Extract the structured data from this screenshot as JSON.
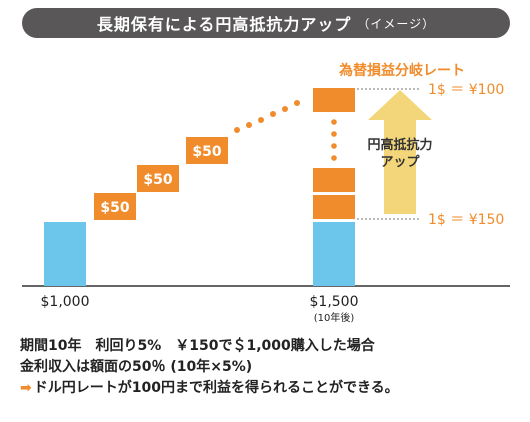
{
  "title": "長期保有による円高抵抗力アップ",
  "subtitle": "（イメージ）",
  "bar_labels": [
    "$50",
    "$50",
    "$50"
  ],
  "axis": {
    "left_label": "$1,000",
    "right_label": "$1,500",
    "right_sublabel": "(10年後)"
  },
  "annotations": {
    "breakeven_label": "為替損益分岐レート",
    "rate_top": "1$ ＝ ¥100",
    "rate_bottom": "1$ ＝ ¥150",
    "arrow_label_line1": "円高抵抗力",
    "arrow_label_line2": "アップ"
  },
  "notes": {
    "line1": "期間10年　利回り5%　￥150で＄1,000購入した場合",
    "line2": "金利収入は額面の50％ (10年×5%)",
    "line3_arrow": "➡",
    "line3": "ドル円レートが100円まで利益を得られることができる。"
  },
  "colors": {
    "title_bg": "#595757",
    "blue": "#6CC6EC",
    "orange": "#F08C2B",
    "arrow_fill": "#F3D57A"
  }
}
